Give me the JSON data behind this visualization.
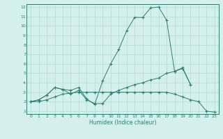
{
  "xlabel": "Humidex (Indice chaleur)",
  "x": [
    0,
    1,
    2,
    3,
    4,
    5,
    6,
    7,
    8,
    9,
    10,
    11,
    12,
    13,
    14,
    15,
    16,
    17,
    18,
    19,
    20,
    21,
    22,
    23
  ],
  "line1": [
    2.0,
    2.2,
    2.7,
    3.5,
    3.3,
    3.2,
    3.5,
    2.3,
    1.7,
    4.2,
    6.0,
    7.5,
    9.5,
    10.9,
    10.9,
    11.9,
    12.0,
    10.6,
    5.2,
    5.6,
    3.8,
    null,
    null,
    null
  ],
  "line2": [
    2.0,
    2.2,
    2.7,
    3.5,
    3.3,
    2.8,
    3.2,
    2.2,
    1.8,
    1.8,
    2.8,
    3.2,
    3.5,
    3.8,
    4.0,
    4.3,
    4.5,
    5.0,
    5.2,
    5.5,
    3.8,
    null,
    null,
    null
  ],
  "line3": [
    2.0,
    2.0,
    2.2,
    2.5,
    2.8,
    2.9,
    3.0,
    3.0,
    3.0,
    3.0,
    3.0,
    3.0,
    3.0,
    3.0,
    3.0,
    3.0,
    3.0,
    3.0,
    2.8,
    2.5,
    2.2,
    2.0,
    1.0,
    0.9
  ],
  "color": "#2e7d6e",
  "bg_color": "#d4f0eb",
  "grid_color": "#b0ddd5",
  "ylim": [
    0.7,
    12.3
  ],
  "xlim": [
    -0.5,
    23.5
  ],
  "yticks": [
    1,
    2,
    3,
    4,
    5,
    6,
    7,
    8,
    9,
    10,
    11,
    12
  ],
  "xticks": [
    0,
    1,
    2,
    3,
    4,
    5,
    6,
    7,
    8,
    9,
    10,
    11,
    12,
    13,
    14,
    15,
    16,
    17,
    18,
    19,
    20,
    21,
    22,
    23
  ]
}
